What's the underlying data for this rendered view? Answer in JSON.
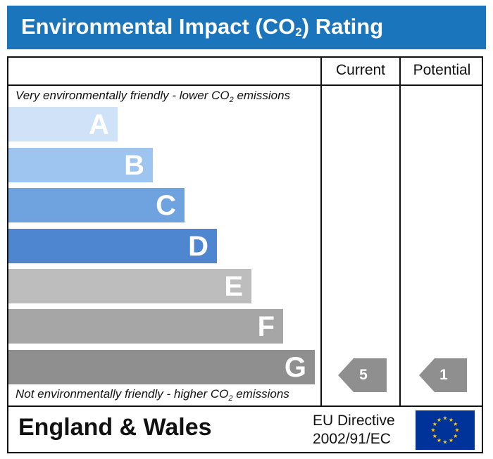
{
  "header": {
    "title_prefix": "Environmental Impact (CO",
    "title_sub": "2",
    "title_suffix": ") Rating"
  },
  "columns": {
    "current": "Current",
    "potential": "Potential"
  },
  "scale": {
    "top_note_prefix": "Very environmentally friendly - lower CO",
    "top_note_sub": "2",
    "top_note_suffix": " emissions",
    "bottom_note_prefix": "Not environmentally friendly - higher CO",
    "bottom_note_sub": "2",
    "bottom_note_suffix": " emissions"
  },
  "footer": {
    "country": "England & Wales",
    "directive_line1": "EU Directive",
    "directive_line2": "2002/91/EC",
    "flag_icon": "eu-flag-icon"
  },
  "colors": {
    "header": "#1a75bc",
    "band_A": "#cfe2f8",
    "band_B": "#9ec5ef",
    "band_C": "#6ea3e0",
    "band_D": "#4e86cf",
    "band_E": "#bdbdbd",
    "band_F": "#a6a6a6",
    "band_G": "#8f8f8f",
    "indicator": "#8f8f8f"
  },
  "chart_data": {
    "type": "bar",
    "categories": [
      "A",
      "B",
      "C",
      "D",
      "E",
      "F",
      "G"
    ],
    "band_colors": [
      "#cfe2f8",
      "#9ec5ef",
      "#6ea3e0",
      "#4e86cf",
      "#bdbdbd",
      "#a6a6a6",
      "#8f8f8f"
    ],
    "current": {
      "value": "5",
      "band": "G"
    },
    "potential": {
      "value": "1",
      "band": "G"
    }
  }
}
